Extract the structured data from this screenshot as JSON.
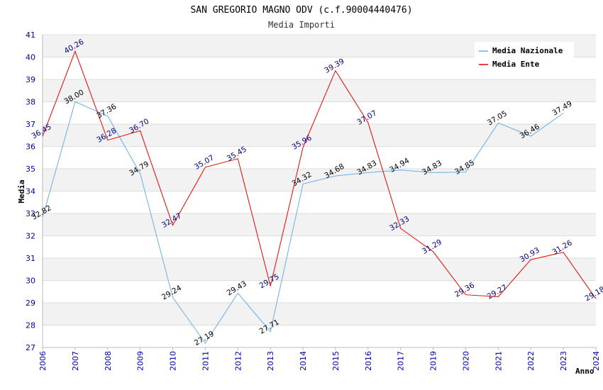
{
  "chart_data": {
    "type": "line",
    "title": "SAN GREGORIO MAGNO ODV (c.f.90004440476)",
    "subtitle": "Media Importi",
    "xlabel": "Anno",
    "ylabel": "Media",
    "ylim": [
      27,
      41
    ],
    "yticks": [
      "27",
      "28",
      "29",
      "30",
      "31",
      "32",
      "33",
      "34",
      "35",
      "36",
      "37",
      "38",
      "39",
      "40",
      "41"
    ],
    "categories": [
      "2006",
      "2007",
      "2008",
      "2009",
      "2010",
      "2011",
      "2012",
      "2013",
      "2014",
      "2015",
      "2016",
      "2017",
      "2019",
      "2020",
      "2021",
      "2022",
      "2023",
      "2024"
    ],
    "series": [
      {
        "name": "Media Nazionale",
        "color": "#6aaee6",
        "label_color": "#000000",
        "values": [
          32.82,
          38.0,
          37.36,
          34.79,
          29.24,
          27.19,
          29.43,
          27.71,
          34.32,
          34.68,
          34.83,
          34.94,
          34.83,
          34.85,
          37.05,
          36.46,
          37.49,
          null
        ],
        "labels": [
          "32.82",
          "38.00",
          "37.36",
          "34.79",
          "29.24",
          "27.19",
          "29.43",
          "27.71",
          "34.32",
          "34.68",
          "34.83",
          "34.94",
          "34.83",
          "34.85",
          "37.05",
          "36.46",
          "37.49",
          ""
        ]
      },
      {
        "name": "Media Ente",
        "color": "#ee0000",
        "label_color": "#000080",
        "values": [
          36.45,
          40.26,
          36.28,
          36.7,
          32.47,
          35.07,
          35.45,
          29.75,
          35.96,
          39.39,
          37.07,
          32.33,
          31.29,
          29.36,
          29.27,
          30.93,
          31.26,
          29.18
        ],
        "labels": [
          "36.45",
          "40.26",
          "36.28",
          "36.70",
          "32.47",
          "35.07",
          "35.45",
          "29.75",
          "35.96",
          "39.39",
          "37.07",
          "32.33",
          "31.29",
          "29.36",
          "29.27",
          "30.93",
          "31.26",
          "29.18"
        ]
      }
    ],
    "legend_position": "top-right",
    "grid": true
  }
}
